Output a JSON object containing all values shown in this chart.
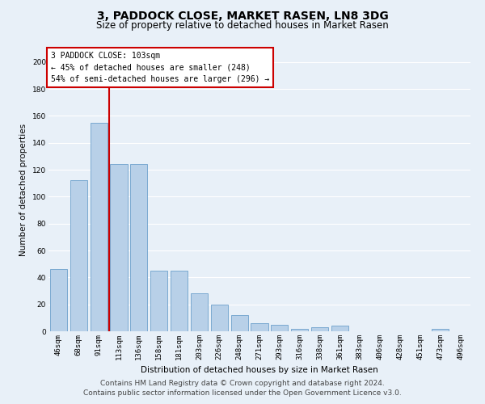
{
  "title": "3, PADDOCK CLOSE, MARKET RASEN, LN8 3DG",
  "subtitle": "Size of property relative to detached houses in Market Rasen",
  "xlabel": "Distribution of detached houses by size in Market Rasen",
  "ylabel": "Number of detached properties",
  "categories": [
    "46sqm",
    "68sqm",
    "91sqm",
    "113sqm",
    "136sqm",
    "158sqm",
    "181sqm",
    "203sqm",
    "226sqm",
    "248sqm",
    "271sqm",
    "293sqm",
    "316sqm",
    "338sqm",
    "361sqm",
    "383sqm",
    "406sqm",
    "428sqm",
    "451sqm",
    "473sqm",
    "496sqm"
  ],
  "values": [
    46,
    112,
    155,
    124,
    124,
    45,
    45,
    28,
    20,
    12,
    6,
    5,
    2,
    3,
    4,
    0,
    0,
    0,
    0,
    2,
    0
  ],
  "bar_color": "#b8d0e8",
  "bar_edge_color": "#6ca0cc",
  "vline_x": 2.5,
  "vline_color": "#cc0000",
  "annotation_text": "3 PADDOCK CLOSE: 103sqm\n← 45% of detached houses are smaller (248)\n54% of semi-detached houses are larger (296) →",
  "annotation_box_color": "#ffffff",
  "annotation_box_edge": "#cc0000",
  "ylim": [
    0,
    210
  ],
  "yticks": [
    0,
    20,
    40,
    60,
    80,
    100,
    120,
    140,
    160,
    180,
    200
  ],
  "footer": "Contains HM Land Registry data © Crown copyright and database right 2024.\nContains public sector information licensed under the Open Government Licence v3.0.",
  "bg_color": "#e8f0f8",
  "plot_bg_color": "#e8f0f8",
  "grid_color": "#ffffff",
  "title_fontsize": 10,
  "subtitle_fontsize": 8.5,
  "axis_label_fontsize": 7.5,
  "tick_fontsize": 6.5,
  "footer_fontsize": 6.5,
  "annot_fontsize": 7
}
